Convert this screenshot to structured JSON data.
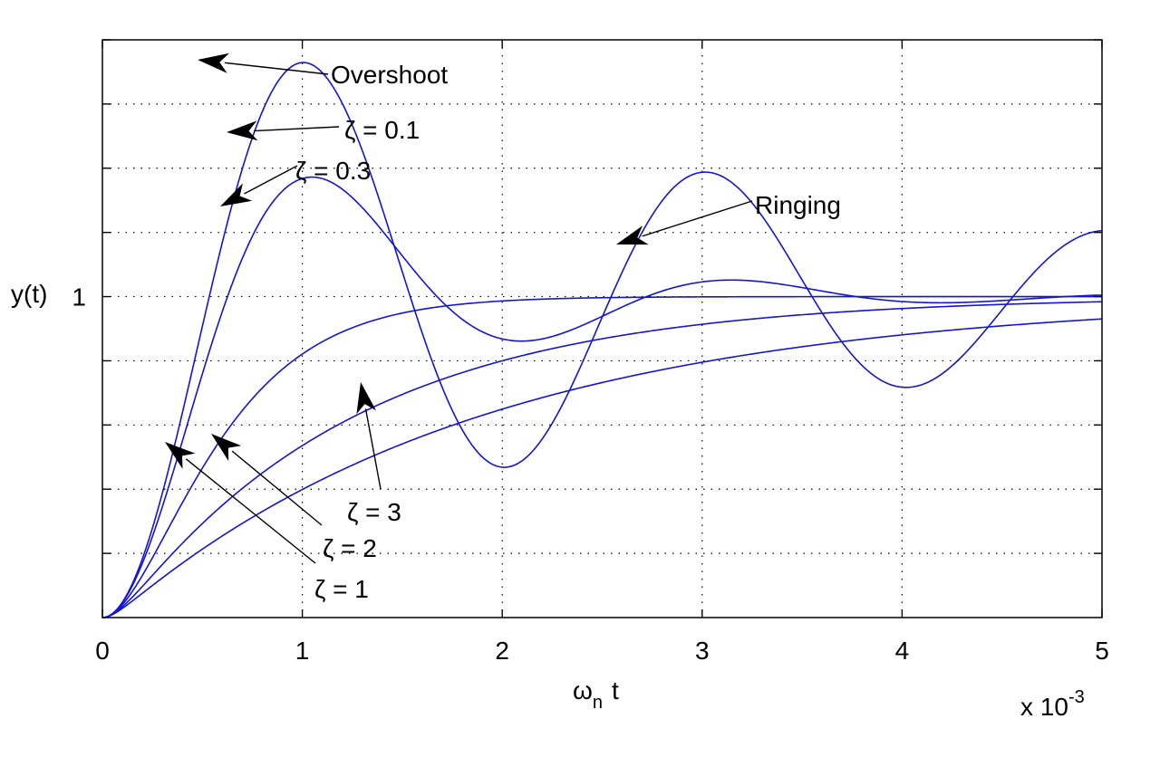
{
  "chart_data": {
    "type": "line",
    "xlabel": "ωn t",
    "xlabel_main": "ω",
    "xlabel_sub": "n",
    "xlabel_tail": "t",
    "ylabel": "y(t)",
    "x_multiplier_text": "x 10",
    "x_multiplier_exp": "-3",
    "xlim": [
      0,
      5
    ],
    "ylim": [
      0,
      1.8
    ],
    "x_ticks": [
      "0",
      "1",
      "2",
      "3",
      "4",
      "5"
    ],
    "y_tick_values": [
      0.2,
      0.4,
      0.6,
      0.8,
      1.0,
      1.2,
      1.4,
      1.6,
      1.8
    ],
    "y_tick_labels": [
      {
        "value": 1.0,
        "text": "1"
      }
    ],
    "grid": true,
    "series_color": "#1414d8",
    "series": [
      {
        "zeta": 0.1,
        "label": "ζ = 0.1",
        "peak_value": 1.73,
        "peak_x": 0.5
      },
      {
        "zeta": 0.3,
        "label": "ζ = 0.3",
        "peak_value": 1.37,
        "peak_x": 0.5
      },
      {
        "zeta": 1,
        "label": "ζ = 1"
      },
      {
        "zeta": 2,
        "label": "ζ = 2"
      },
      {
        "zeta": 3,
        "label": "ζ = 3"
      }
    ],
    "annotations": [
      {
        "text": "Overshoot"
      },
      {
        "text": "Ringing"
      }
    ]
  }
}
